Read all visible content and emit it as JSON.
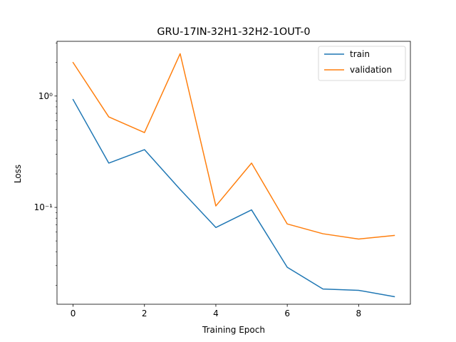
{
  "chart_data": {
    "type": "line",
    "title": "GRU-17IN-32H1-32H2-1OUT-0",
    "xlabel": "Training Epoch",
    "ylabel": "Loss",
    "x": [
      0,
      1,
      2,
      3,
      4,
      5,
      6,
      7,
      8,
      9
    ],
    "xlim": [
      -0.45,
      9.45
    ],
    "xticks": [
      0,
      2,
      4,
      6,
      8
    ],
    "xtick_labels": [
      "0",
      "2",
      "4",
      "6",
      "8"
    ],
    "yscale": "log",
    "ylim": [
      0.0135,
      3.1
    ],
    "yticks": [
      0.1,
      1
    ],
    "ytick_labels": [
      "10⁻¹",
      "10⁰"
    ],
    "grid": false,
    "legend": "top-right",
    "series": [
      {
        "name": "train",
        "color": "#1f77b4",
        "values": [
          0.93,
          0.25,
          0.33,
          0.145,
          0.066,
          0.095,
          0.029,
          0.0185,
          0.018,
          0.0158
        ]
      },
      {
        "name": "validation",
        "color": "#ff7f0e",
        "values": [
          2.0,
          0.65,
          0.47,
          2.4,
          0.103,
          0.25,
          0.071,
          0.058,
          0.052,
          0.056
        ]
      }
    ]
  }
}
